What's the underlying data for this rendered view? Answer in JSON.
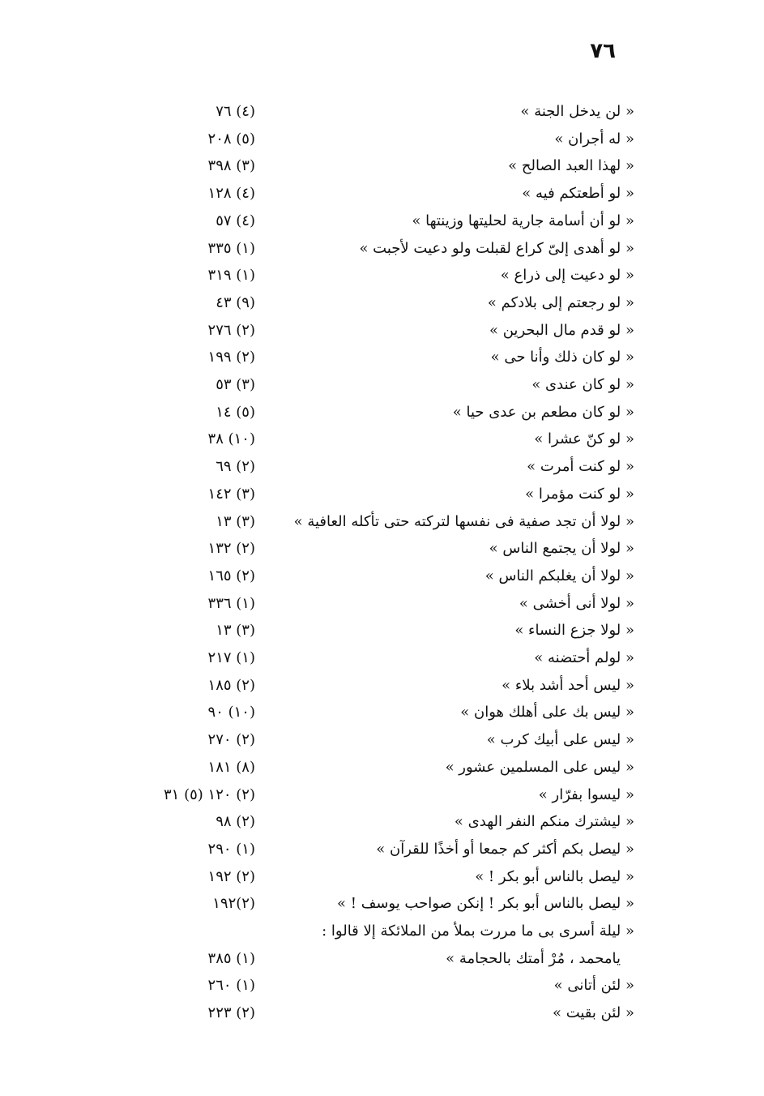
{
  "page_number": "٧٦",
  "entries": [
    {
      "text": "« لن يدخل الجنة »",
      "ref": "(٤) ٧٦"
    },
    {
      "text": "« له أجران »",
      "ref": "(٥) ٢٠٨"
    },
    {
      "text": "« لهذا العبد الصالح »",
      "ref": "(٣) ٣٩٨"
    },
    {
      "text": "« لو أطعتكم فيه »",
      "ref": "(٤) ١٢٨"
    },
    {
      "text": "« لو أن أسامة جارية لحليتها وزينتها »",
      "ref": "(٤) ٥٧"
    },
    {
      "text": "« لو أهدى إلىّ كراع لقبلت ولو دعيت لأجبت »",
      "ref": "(١) ٣٣٥"
    },
    {
      "text": "« لو دعيت إلى ذراع »",
      "ref": "(١) ٣١٩"
    },
    {
      "text": "« لو رجعتم إلى بلادكم »",
      "ref": "(٩) ٤٣"
    },
    {
      "text": "« لو قدم مال البحرين »",
      "ref": "(٢) ٢٧٦"
    },
    {
      "text": "« لو كان ذلك وأنا حى »",
      "ref": "(٢) ١٩٩"
    },
    {
      "text": "« لو كان عندى »",
      "ref": "(٣) ٥٣"
    },
    {
      "text": "« لو كان مطعم بن عدى حيا »",
      "ref": "(٥) ١٤"
    },
    {
      "text": "« لو كنّ عشرا »",
      "ref": "(١٠) ٣٨"
    },
    {
      "text": "« لو كنت أمرت »",
      "ref": "(٢) ٦٩"
    },
    {
      "text": "« لو كنت مؤمرا »",
      "ref": "(٣) ١٤٢"
    },
    {
      "text": "« لولا أن تجد صفية فى نفسها لتركته حتى تأكله العافية »",
      "ref": "(٣) ١٣"
    },
    {
      "text": "« لولا أن يجتمع الناس »",
      "ref": "(٢) ١٣٢"
    },
    {
      "text": "« لولا أن يغلبكم الناس »",
      "ref": "(٢) ١٦٥"
    },
    {
      "text": "« لولا أنى أخشى »",
      "ref": "(١) ٣٣٦"
    },
    {
      "text": "« لولا جزع النساء »",
      "ref": "(٣) ١٣"
    },
    {
      "text": "« لولم أحتضنه »",
      "ref": "(١) ٢١٧"
    },
    {
      "text": "« ليس أحد أشد بلاء »",
      "ref": "(٢) ١٨٥"
    },
    {
      "text": "« ليس بك على أهلك هوان »",
      "ref": "(١٠) ٩٠"
    },
    {
      "text": "« ليس على أبيك كرب »",
      "ref": "(٢) ٢٧٠"
    },
    {
      "text": "« ليس على المسلمين عشور »",
      "ref": "(٨) ١٨١"
    },
    {
      "text": "« ليسوا بفرّار »",
      "ref": "(٢) ١٢٠ (٥) ٣١"
    },
    {
      "text": "« ليشترك منكم النفر الهدى »",
      "ref": "(٢) ٩٨"
    },
    {
      "text": "« ليصل بكم أكثر كم جمعا أو أخذًا للقرآن »",
      "ref": "(١) ٢٩٠"
    },
    {
      "text": "« ليصل بالناس أبو بكر ! »",
      "ref": "(٢) ١٩٢"
    },
    {
      "text": "« ليصل بالناس أبو بكر ! إنكن صواحب يوسف ! »",
      "ref": "(٢)١٩٢"
    },
    {
      "text": "« ليلة أسرى بى ما مررت بملأ من الملائكة إلا قالوا :",
      "ref": ""
    },
    {
      "text": "يامحمد ، مُرْ أمتك بالحجامة »",
      "ref": "(١) ٣٨٥",
      "indent": true
    },
    {
      "text": "« لئن أتانى »",
      "ref": "(١) ٢٦٠"
    },
    {
      "text": "« لئن بقيت »",
      "ref": "(٢) ٢٢٣"
    }
  ]
}
